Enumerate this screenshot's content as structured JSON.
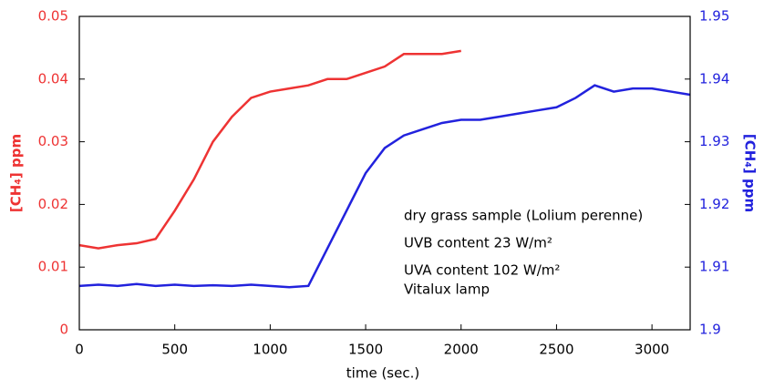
{
  "chart_data": {
    "type": "line",
    "xlabel": "time (sec.)",
    "ylabel": "[CH₄] ppm",
    "y2label": "[CH₄] ppm",
    "xlim": [
      0,
      3200
    ],
    "xticks": [
      0,
      500,
      1000,
      1500,
      2000,
      2500,
      3000
    ],
    "ylim": [
      0,
      0.05
    ],
    "yticks": [
      0,
      0.01,
      0.02,
      0.03,
      0.04,
      0.05
    ],
    "y2lim": [
      1.9,
      1.95
    ],
    "y2ticks": [
      1.9,
      1.91,
      1.92,
      1.93,
      1.94,
      1.95
    ],
    "series": [
      {
        "color": "#ee3333",
        "x": [
          0,
          100,
          200,
          300,
          400,
          500,
          600,
          700,
          800,
          900,
          1000,
          1100,
          1200,
          1300,
          1400,
          1500,
          1600,
          1700,
          1800,
          1900,
          2000
        ],
        "values": [
          0.0135,
          0.013,
          0.0135,
          0.0138,
          0.0145,
          0.019,
          0.024,
          0.03,
          0.034,
          0.037,
          0.038,
          0.0385,
          0.039,
          0.04,
          0.04,
          0.041,
          0.042,
          0.044,
          0.044,
          0.044,
          0.0445
        ]
      },
      {
        "color": "#2222dd",
        "axis": "y2",
        "x": [
          0,
          100,
          200,
          300,
          400,
          500,
          600,
          700,
          800,
          900,
          1000,
          1100,
          1200,
          1300,
          1400,
          1500,
          1600,
          1700,
          1800,
          1900,
          2000,
          2100,
          2200,
          2300,
          2400,
          2500,
          2600,
          2700,
          2800,
          2900,
          3000,
          3100,
          3200
        ],
        "values": [
          1.907,
          1.9072,
          1.907,
          1.9073,
          1.907,
          1.9072,
          1.907,
          1.9071,
          1.907,
          1.9072,
          1.907,
          1.9068,
          1.907,
          1.913,
          1.919,
          1.925,
          1.929,
          1.931,
          1.932,
          1.933,
          1.9335,
          1.9335,
          1.934,
          1.9345,
          1.935,
          1.9355,
          1.937,
          1.939,
          1.938,
          1.9385,
          1.9385,
          1.938,
          1.9375
        ]
      }
    ],
    "annotations": [
      "dry grass sample (Lolium perenne)",
      "UVB content 23 W/m²",
      "UVA content 102 W/m²",
      "Vitalux lamp"
    ]
  }
}
